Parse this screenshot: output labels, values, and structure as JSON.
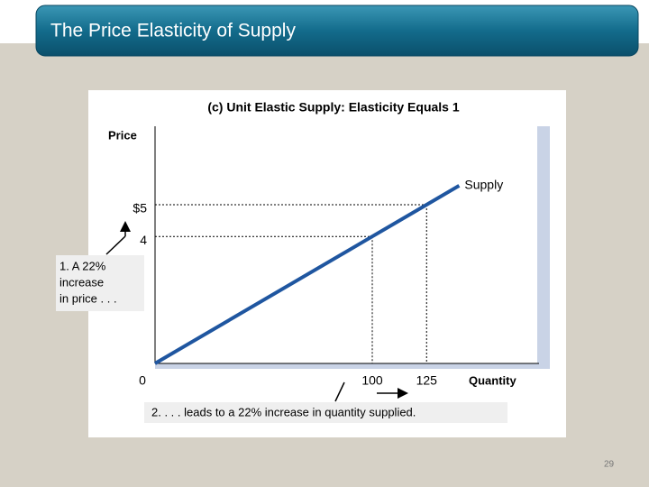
{
  "slide": {
    "title": "The Price Elasticity of Supply",
    "page_number": "29"
  },
  "chart_data": {
    "type": "line",
    "title": "(c) Unit Elastic Supply: Elasticity Equals 1",
    "y_label": "Price",
    "x_label": "Quantity",
    "x": [
      0,
      100,
      125,
      140
    ],
    "series": [
      {
        "name": "Supply",
        "color": "#1f56a0",
        "values": [
          0,
          4,
          5,
          5.6
        ]
      }
    ],
    "xlim": [
      0,
      180
    ],
    "ylim": [
      0,
      7.5
    ],
    "xticks": [
      0,
      100,
      125
    ],
    "yticks": [
      4,
      {
        "value": 5,
        "label": "$5"
      }
    ],
    "guides": [
      1,
      2
    ],
    "annotations": [
      {
        "lines": [
          "1. A 22%",
          "increase",
          "in price . . ."
        ]
      },
      {
        "lines": [
          "2.  . . . leads to a 22% increase in quantity supplied."
        ]
      }
    ]
  }
}
